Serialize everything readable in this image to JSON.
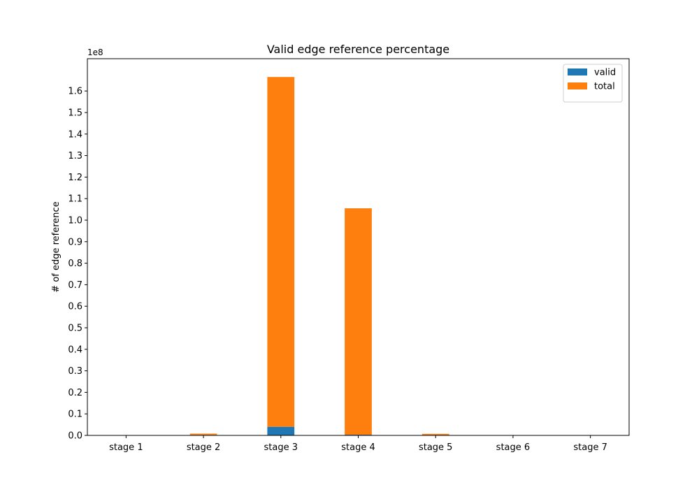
{
  "chart_data": {
    "type": "bar",
    "stacked": true,
    "title": "Valid edge reference percentage",
    "xlabel": "",
    "ylabel": "# of edge reference",
    "y_offset_label": "1e8",
    "y_scale_factor": 100000000,
    "categories": [
      "stage 1",
      "stage 2",
      "stage 3",
      "stage 4",
      "stage 5",
      "stage 6",
      "stage 7"
    ],
    "ylim": [
      0,
      175000000
    ],
    "yticks": [
      0,
      10000000,
      20000000,
      30000000,
      40000000,
      50000000,
      60000000,
      70000000,
      80000000,
      90000000,
      100000000,
      110000000,
      120000000,
      130000000,
      140000000,
      150000000,
      160000000
    ],
    "ytick_labels": [
      "0.0",
      "0.1",
      "0.2",
      "0.3",
      "0.4",
      "0.5",
      "0.6",
      "0.7",
      "0.8",
      "0.9",
      "1.0",
      "1.1",
      "1.2",
      "1.3",
      "1.4",
      "1.5",
      "1.6"
    ],
    "series": [
      {
        "name": "valid",
        "color": "#1f77b4",
        "values": [
          0,
          200000,
          4000000,
          300000,
          100000,
          0,
          0
        ]
      },
      {
        "name": "total",
        "color": "#ff7f0e",
        "values": [
          0,
          600000,
          162500000,
          105200000,
          600000,
          0,
          0
        ]
      }
    ],
    "grid": false,
    "legend_position": "top-right"
  }
}
